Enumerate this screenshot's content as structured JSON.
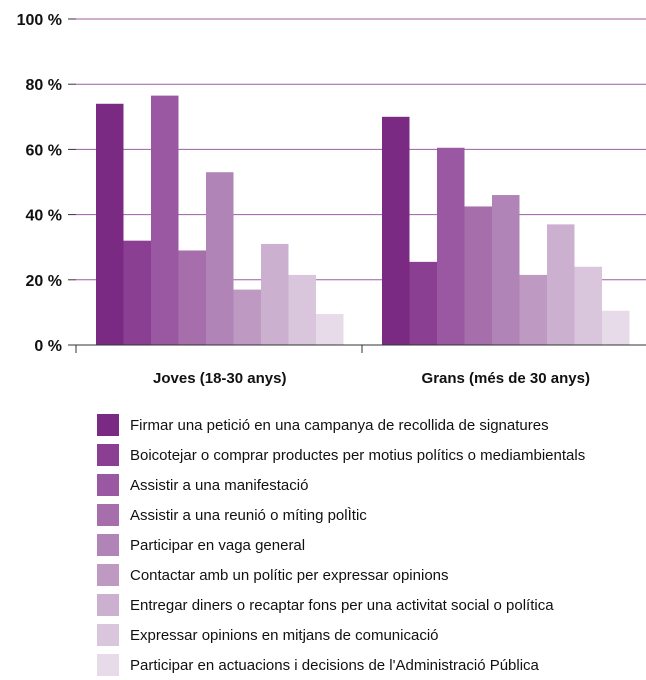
{
  "chart_data": {
    "type": "bar",
    "title": "",
    "xlabel": "",
    "ylabel": "",
    "ylim": [
      0,
      100
    ],
    "yticks": [
      0,
      20,
      40,
      60,
      80,
      100
    ],
    "ytick_labels": [
      "0 %",
      "20 %",
      "40 %",
      "60 %",
      "80 %",
      "100 %"
    ],
    "grid": true,
    "legend_position": "bottom",
    "categories": [
      "Joves (18-30 anys)",
      "Grans (més de 30 anys)"
    ],
    "series": [
      {
        "name": "Firmar una petició en una campanya de recollida de signatures",
        "color": "#7b2a84",
        "values": [
          74,
          70
        ]
      },
      {
        "name": "Boicotejar o comprar productes per motius polítics o mediambientals",
        "color": "#8a3f92",
        "values": [
          32,
          25.5
        ]
      },
      {
        "name": "Assistir a una manifestació",
        "color": "#9a58a2",
        "values": [
          76.5,
          60.5
        ]
      },
      {
        "name": "Assistir a una reunió o míting polÌtic",
        "color": "#a66fab",
        "values": [
          29,
          42.5
        ]
      },
      {
        "name": "Participar en vaga general",
        "color": "#b184b7",
        "values": [
          53,
          46
        ]
      },
      {
        "name": "Contactar amb un polític per expressar opinions",
        "color": "#be9ac3",
        "values": [
          17,
          21.5
        ]
      },
      {
        "name": "Entregar diners o recaptar fons per una activitat social o política",
        "color": "#cbb0d0",
        "values": [
          31,
          37
        ]
      },
      {
        "name": "Expressar opinions en mitjans de comunicació",
        "color": "#d9c6dc",
        "values": [
          21.5,
          24
        ]
      },
      {
        "name": "Participar en actuacions i decisions de l'Administració Pública",
        "color": "#e7dbe9",
        "values": [
          9.5,
          10.5
        ]
      }
    ]
  }
}
